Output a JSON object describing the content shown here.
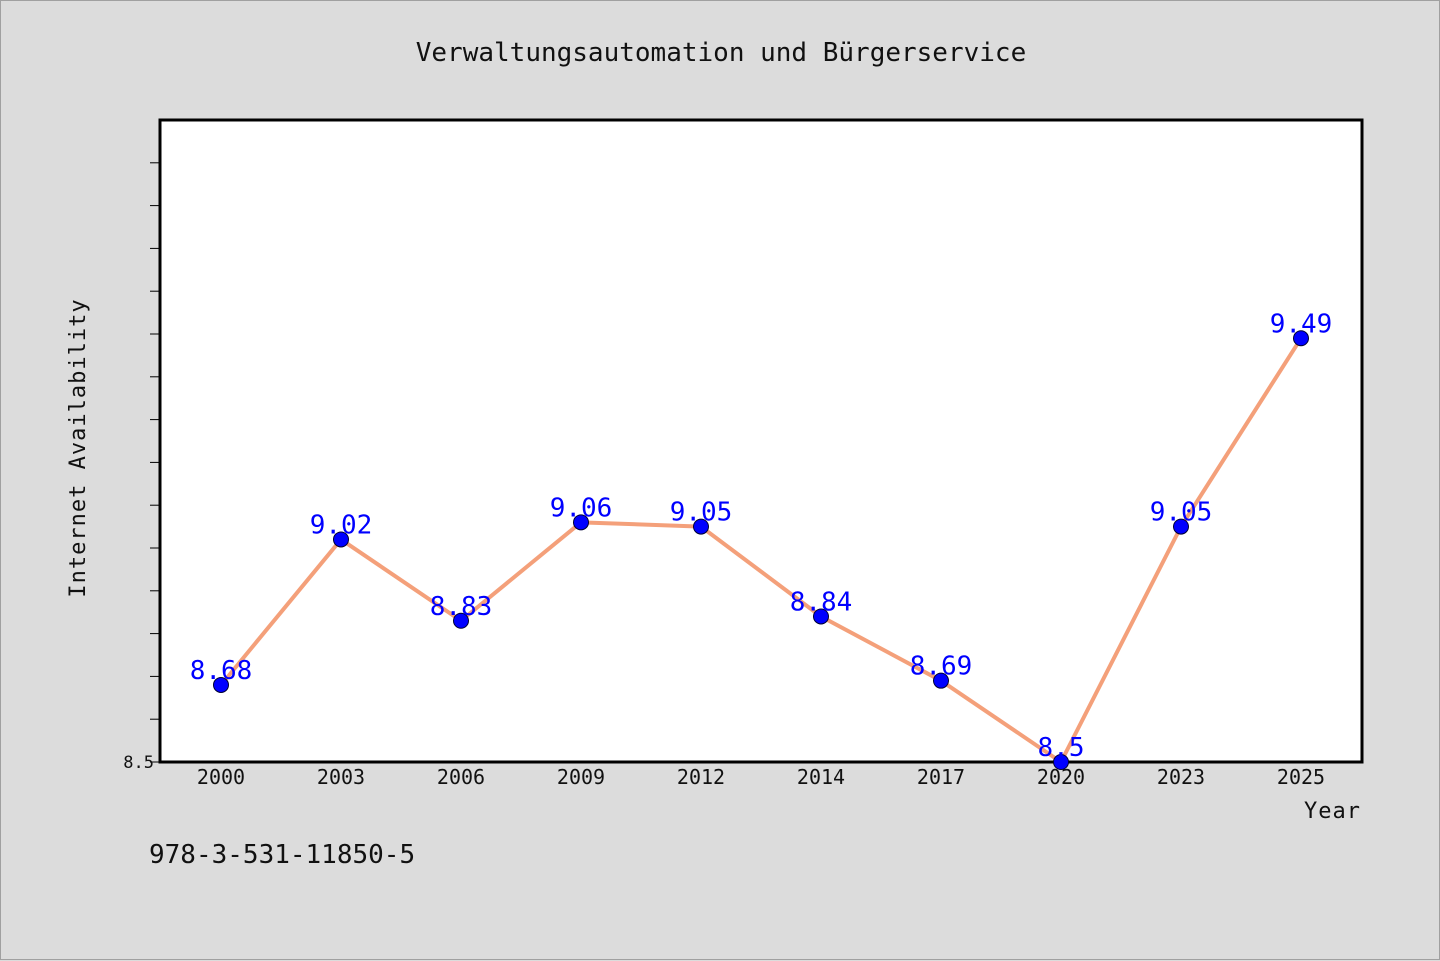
{
  "chart_data": {
    "type": "line",
    "title": "Verwaltungsautomation und Bürgerservice",
    "xlabel": "Year",
    "ylabel": "Internet Availability",
    "categories": [
      "2000",
      "2003",
      "2006",
      "2009",
      "2012",
      "2014",
      "2017",
      "2020",
      "2023",
      "2025"
    ],
    "series": [
      {
        "values": [
          8.68,
          9.02,
          8.83,
          9.06,
          9.05,
          8.84,
          8.69,
          8.5,
          9.05,
          9.49
        ]
      }
    ],
    "data_labels": [
      "8.68",
      "9.02",
      "8.83",
      "9.06",
      "9.05",
      "8.84",
      "8.69",
      "8.5",
      "9.05",
      "9.49"
    ],
    "ylim": [
      8.5,
      10.0
    ],
    "yticks_labeled": [
      "8.5"
    ],
    "grid": false,
    "colors": {
      "line": "#f4a07a",
      "marker": "#0000ff",
      "data_label": "#0000ff",
      "plot_background": "#ffffff",
      "page_background": "#dcdcdc"
    }
  },
  "footer": {
    "isbn": "978-3-531-11850-5"
  }
}
